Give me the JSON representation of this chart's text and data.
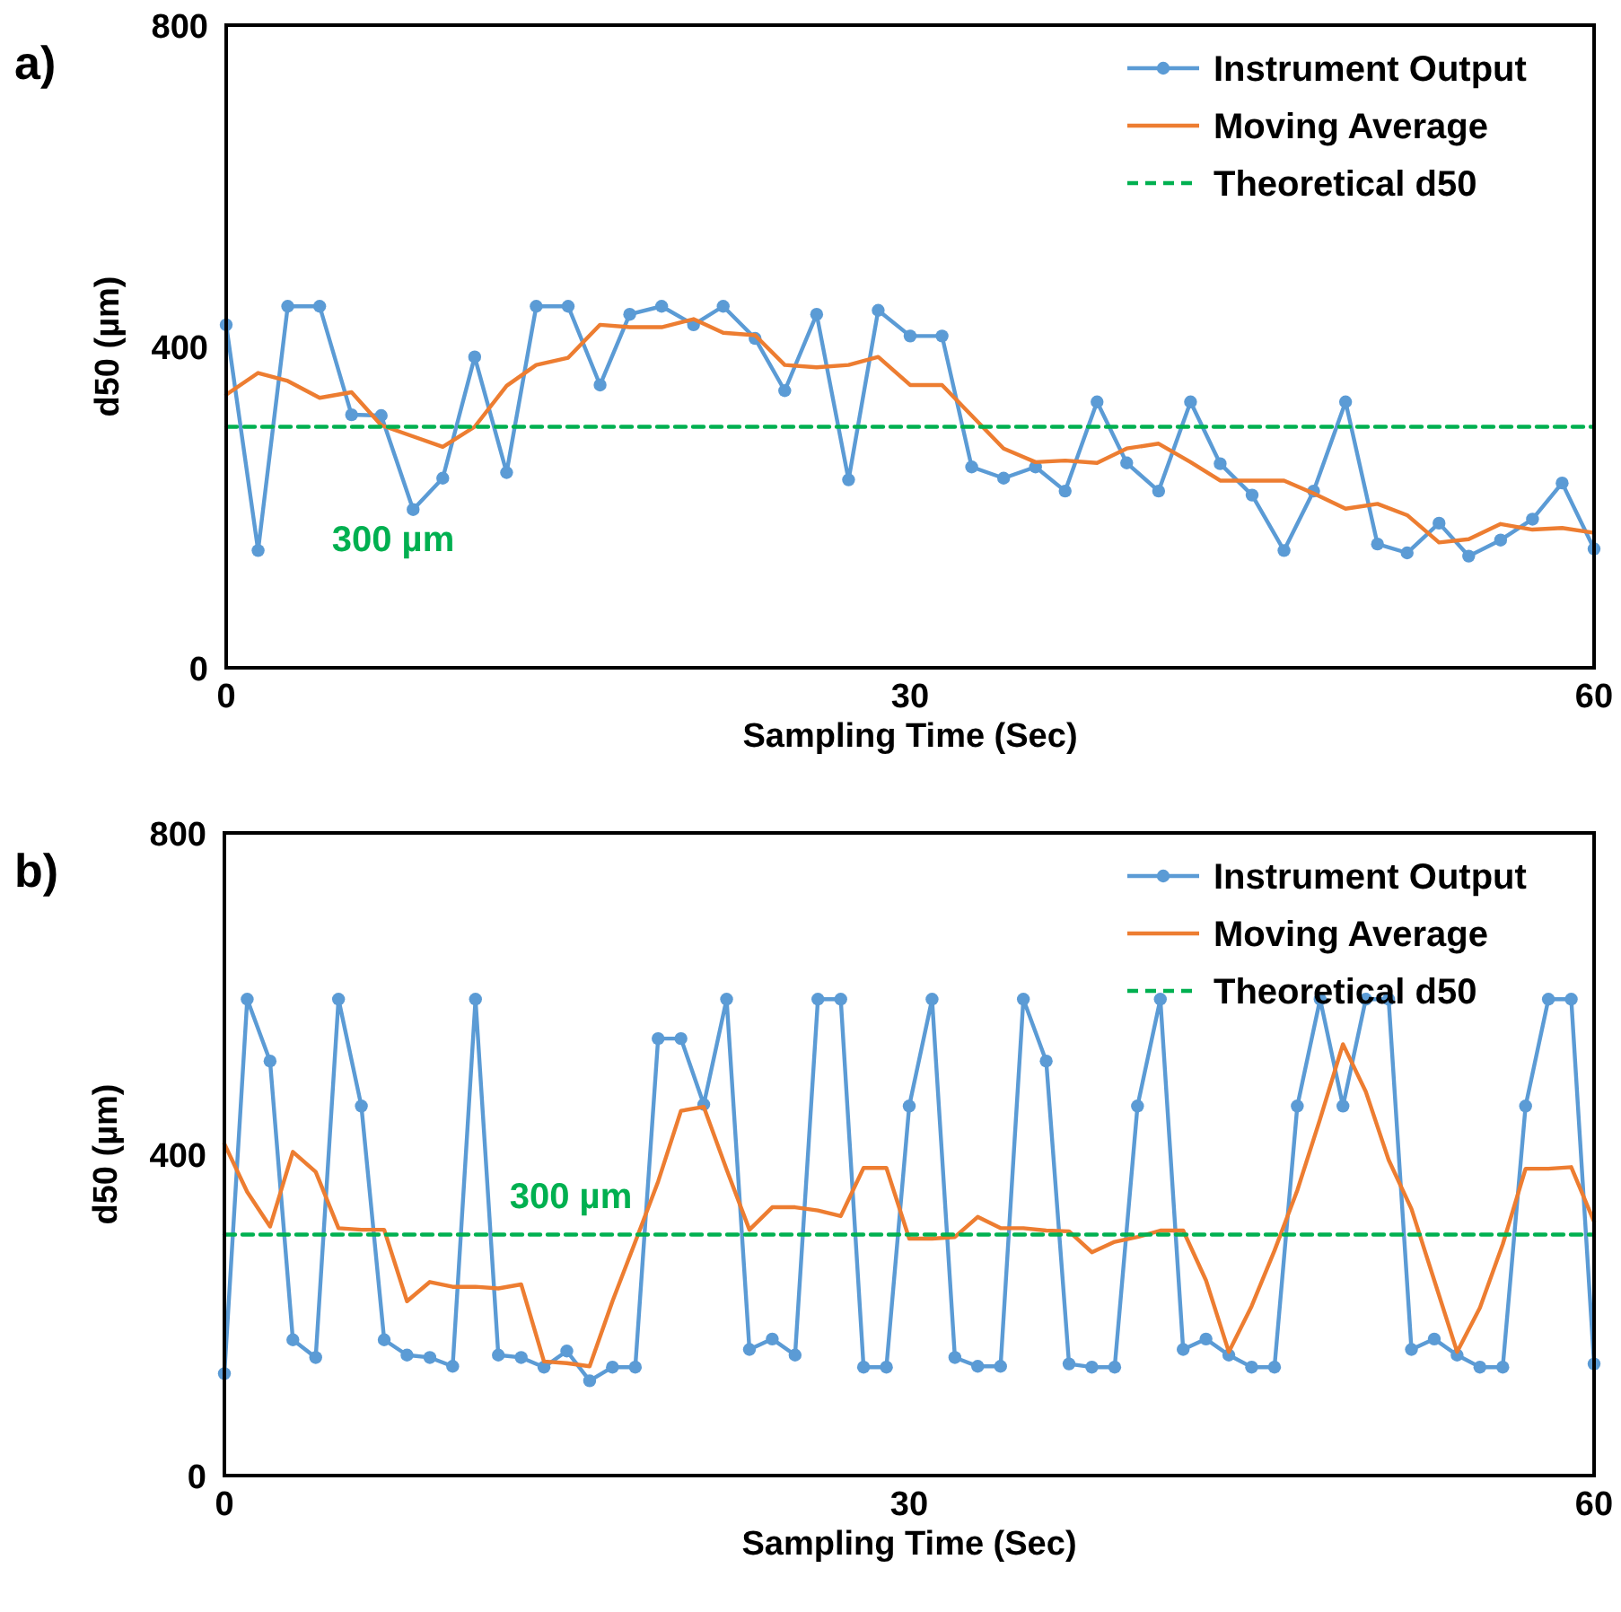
{
  "chart_data": [
    {
      "type": "line",
      "title": "a)",
      "xlabel": "Sampling Time (Sec)",
      "ylabel": "d50 (µm)",
      "xlim": [
        0,
        60
      ],
      "xticks": [
        0,
        30,
        60
      ],
      "ylim": [
        0,
        800
      ],
      "yticks": [
        0,
        400,
        800
      ],
      "grid": false,
      "legend": "top right",
      "annotations": [
        "300 µm"
      ],
      "series": [
        {
          "name": "Instrument Output",
          "color": "#5b9bd5",
          "marker": "circle",
          "line_style": "solid",
          "x": [
            0,
            1.4,
            2.7,
            4.1,
            5.5,
            6.8,
            8.2,
            9.5,
            10.9,
            12.3,
            13.6,
            15,
            16.4,
            17.7,
            19.1,
            20.5,
            21.8,
            23.2,
            24.5,
            25.9,
            27.3,
            28.6,
            30,
            31.4,
            32.7,
            34.1,
            35.5,
            36.8,
            38.2,
            39.5,
            40.9,
            42.3,
            43.6,
            45,
            46.4,
            47.7,
            49.1,
            50.5,
            51.8,
            53.2,
            54.5,
            55.9,
            57.3,
            58.6,
            60
          ],
          "values": [
            427,
            146,
            450,
            450,
            315,
            314,
            197,
            236,
            387,
            243,
            450,
            450,
            352,
            440,
            450,
            427,
            450,
            410,
            345,
            440,
            234,
            445,
            413,
            413,
            250,
            236,
            250,
            220,
            331,
            255,
            220,
            331,
            254,
            215,
            146,
            220,
            331,
            154,
            143,
            180,
            139,
            159,
            185,
            230,
            148
          ]
        },
        {
          "name": "Moving Average",
          "color": "#ed7d31",
          "marker": "none",
          "line_style": "solid",
          "x": [
            0,
            1.4,
            2.7,
            4.1,
            5.5,
            6.8,
            8.2,
            9.5,
            10.9,
            12.3,
            13.6,
            15,
            16.4,
            17.7,
            19.1,
            20.5,
            21.8,
            23.2,
            24.5,
            25.9,
            27.3,
            28.6,
            30,
            31.4,
            32.7,
            34.1,
            35.5,
            36.8,
            38.2,
            39.5,
            40.9,
            42.3,
            43.6,
            45,
            46.4,
            47.7,
            49.1,
            50.5,
            51.8,
            53.2,
            54.5,
            55.9,
            57.3,
            58.6,
            60
          ],
          "values": [
            340,
            367,
            357,
            336,
            343,
            302,
            288,
            275,
            300,
            351,
            377,
            386,
            427,
            424,
            424,
            434,
            417,
            414,
            377,
            374,
            377,
            387,
            352,
            352,
            314,
            273,
            256,
            258,
            255,
            273,
            279,
            256,
            233,
            233,
            233,
            217,
            198,
            204,
            190,
            156,
            160,
            179,
            172,
            174,
            168
          ]
        },
        {
          "name": "Theoretical d50",
          "color": "#00b050",
          "marker": "none",
          "line_style": "dashed",
          "x": [
            0,
            60
          ],
          "values": [
            300,
            300
          ]
        }
      ]
    },
    {
      "type": "line",
      "title": "b)",
      "xlabel": "Sampling Time (Sec)",
      "ylabel": "d50 (µm)",
      "xlim": [
        0,
        60
      ],
      "xticks": [
        0,
        30,
        60
      ],
      "ylim": [
        0,
        800
      ],
      "yticks": [
        0,
        400,
        800
      ],
      "grid": false,
      "legend": "top right",
      "annotations": [
        "300 µm"
      ],
      "series": [
        {
          "name": "Instrument Output",
          "color": "#5b9bd5",
          "marker": "circle",
          "line_style": "solid",
          "x": [
            0,
            1,
            2,
            3,
            4,
            5,
            6,
            7,
            8,
            9,
            10,
            11,
            12,
            13,
            14,
            15,
            16,
            17,
            18,
            19,
            20,
            21,
            22,
            23,
            24,
            25,
            26,
            27,
            28,
            29,
            30,
            31,
            32,
            33,
            34,
            35,
            36,
            37,
            38,
            39,
            40,
            41,
            42,
            43,
            44,
            45,
            46,
            47,
            48,
            49,
            50,
            51,
            52,
            53,
            54,
            55,
            56,
            57,
            58,
            59,
            60
          ],
          "values": [
            127,
            593,
            516,
            169,
            147,
            593,
            460,
            169,
            150,
            147,
            136,
            593,
            150,
            147,
            135,
            155,
            118,
            135,
            135,
            544,
            544,
            462,
            593,
            157,
            170,
            150,
            593,
            593,
            135,
            135,
            460,
            593,
            147,
            136,
            136,
            593,
            516,
            139,
            135,
            135,
            460,
            593,
            157,
            170,
            150,
            135,
            135,
            460,
            593,
            460,
            593,
            593,
            157,
            170,
            150,
            135,
            135,
            460,
            593,
            593,
            139
          ]
        },
        {
          "name": "Moving Average",
          "color": "#ed7d31",
          "marker": "none",
          "line_style": "solid",
          "x": [
            0,
            1,
            2,
            3,
            4,
            5,
            6,
            7,
            8,
            9,
            10,
            11,
            12,
            13,
            14,
            15,
            16,
            17,
            18,
            19,
            20,
            21,
            22,
            23,
            24,
            25,
            26,
            27,
            28,
            29,
            30,
            31,
            32,
            33,
            34,
            35,
            36,
            37,
            38,
            39,
            40,
            41,
            42,
            43,
            44,
            45,
            46,
            47,
            48,
            49,
            50,
            51,
            52,
            53,
            54,
            55,
            56,
            57,
            58,
            59,
            60
          ],
          "values": [
            413,
            353,
            310,
            403,
            378,
            308,
            306,
            306,
            217,
            241,
            235,
            235,
            233,
            238,
            142,
            140,
            136,
            217,
            291,
            366,
            454,
            459,
            381,
            306,
            334,
            334,
            330,
            323,
            383,
            383,
            295,
            295,
            297,
            322,
            308,
            308,
            305,
            304,
            278,
            291,
            297,
            305,
            305,
            243,
            154,
            211,
            280,
            355,
            444,
            537,
            478,
            393,
            332,
            243,
            154,
            209,
            288,
            382,
            382,
            384,
            316
          ]
        },
        {
          "name": "Theoretical d50",
          "color": "#00b050",
          "marker": "none",
          "line_style": "dashed",
          "x": [
            0,
            60
          ],
          "values": [
            300,
            300
          ]
        }
      ]
    }
  ]
}
